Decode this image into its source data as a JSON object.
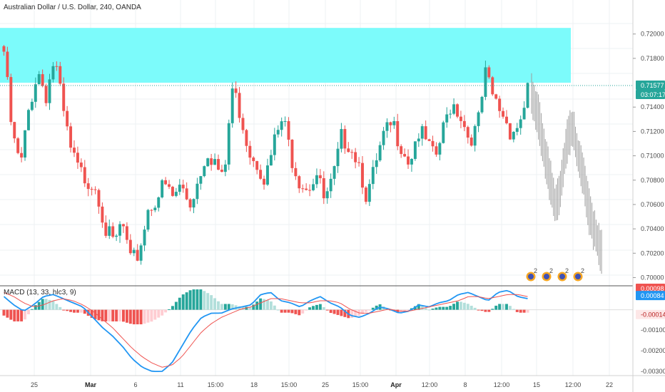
{
  "header": {
    "title": "Australian Dollar / U.S. Dollar, 240, OANDA"
  },
  "colors": {
    "up": "#26a69a",
    "down": "#ef5350",
    "zone": "#7cfbfb",
    "proj": "#9e9e9e",
    "macd_line": "#2196f3",
    "signal_line": "#ef5350",
    "price_badge": "#26a69a",
    "hist_up_strong": "#26a69a",
    "hist_up_weak": "#b2dfdb",
    "hist_down_strong": "#ef5350",
    "hist_down_weak": "#ffcdd2"
  },
  "price_scale": {
    "ticks": [
      "0.72000",
      "0.71800",
      "0.71400",
      "0.71200",
      "0.71000",
      "0.70800",
      "0.70600",
      "0.70400",
      "0.70200",
      "0.70000"
    ],
    "current_price": "0.71577",
    "countdown": "03:07:17"
  },
  "macd_scale": {
    "ticks": [
      "0.00100",
      "-0.00100",
      "-0.00200",
      "-0.00300"
    ],
    "badges": [
      "0.00098",
      "0.00084",
      "-0.00014"
    ]
  },
  "macd_title": "MACD (13, 33, hlc3, 9)",
  "x_axis": [
    {
      "label": "25",
      "bold": false
    },
    {
      "label": "Mar",
      "bold": true
    },
    {
      "label": "6",
      "bold": false
    },
    {
      "label": "11",
      "bold": false
    },
    {
      "label": "15:00",
      "bold": false
    },
    {
      "label": "18",
      "bold": false
    },
    {
      "label": "15:00",
      "bold": false
    },
    {
      "label": "25",
      "bold": false
    },
    {
      "label": "15:00",
      "bold": false
    },
    {
      "label": "Apr",
      "bold": true
    },
    {
      "label": "12:00",
      "bold": false
    },
    {
      "label": "8",
      "bold": false
    },
    {
      "label": "12:00",
      "bold": false
    },
    {
      "label": "15",
      "bold": false
    },
    {
      "label": "12:00",
      "bold": false
    },
    {
      "label": "22",
      "bold": false
    }
  ],
  "event_icons": {
    "labels": [
      "2",
      "2",
      "2",
      "2"
    ]
  },
  "chart_data": {
    "type": "candlestick",
    "title": "Australian Dollar / U.S. Dollar, 240, OANDA",
    "ylim": [
      0.6995,
      0.7225
    ],
    "zone": {
      "from": 0.716,
      "to": 0.7205
    },
    "ohlc_anchors": [
      [
        0.719,
        0.7205,
        0.715
      ],
      [
        0.712,
        0.716,
        0.7085
      ],
      [
        0.7095,
        0.713,
        0.707
      ],
      [
        0.7145,
        0.7175,
        0.713
      ],
      [
        0.7175,
        0.7185,
        0.715
      ],
      [
        0.7155,
        0.7195,
        0.7145
      ],
      [
        0.7185,
        0.721,
        0.717
      ],
      [
        0.714,
        0.7165,
        0.713
      ],
      [
        0.7105,
        0.7135,
        0.7085
      ],
      [
        0.709,
        0.712,
        0.708
      ],
      [
        0.7085,
        0.7105,
        0.7075
      ],
      [
        0.708,
        0.7095,
        0.7065
      ],
      [
        0.7045,
        0.7065,
        0.7025
      ],
      [
        0.703,
        0.705,
        0.702
      ],
      [
        0.705,
        0.706,
        0.703
      ],
      [
        0.7015,
        0.7035,
        0.7005
      ],
      [
        0.7025,
        0.7045,
        0.7015
      ],
      [
        0.706,
        0.707,
        0.704
      ],
      [
        0.707,
        0.7085,
        0.7055
      ],
      [
        0.708,
        0.7095,
        0.7065
      ],
      [
        0.707,
        0.7085,
        0.7055
      ],
      [
        0.708,
        0.7095,
        0.706
      ],
      [
        0.7065,
        0.708,
        0.7045
      ],
      [
        0.7085,
        0.71,
        0.7075
      ],
      [
        0.711,
        0.7125,
        0.7095
      ],
      [
        0.71,
        0.7115,
        0.709
      ],
      [
        0.708,
        0.71,
        0.707
      ],
      [
        0.716,
        0.7165,
        0.7085
      ],
      [
        0.714,
        0.716,
        0.7125
      ],
      [
        0.711,
        0.713,
        0.7095
      ],
      [
        0.71,
        0.7115,
        0.7085
      ],
      [
        0.7085,
        0.71,
        0.7075
      ],
      [
        0.7115,
        0.713,
        0.71
      ],
      [
        0.7135,
        0.715,
        0.7115
      ],
      [
        0.7105,
        0.7125,
        0.709
      ],
      [
        0.7085,
        0.71,
        0.7075
      ],
      [
        0.708,
        0.7095,
        0.707
      ],
      [
        0.709,
        0.7105,
        0.708
      ],
      [
        0.7065,
        0.7085,
        0.7055
      ],
      [
        0.7085,
        0.71,
        0.7075
      ],
      [
        0.712,
        0.713,
        0.7105
      ],
      [
        0.7115,
        0.7125,
        0.71
      ],
      [
        0.71,
        0.7125,
        0.709
      ],
      [
        0.707,
        0.709,
        0.706
      ],
      [
        0.7095,
        0.711,
        0.7085
      ],
      [
        0.712,
        0.713,
        0.7105
      ],
      [
        0.713,
        0.7145,
        0.712
      ],
      [
        0.7115,
        0.7125,
        0.71
      ],
      [
        0.71,
        0.7115,
        0.709
      ],
      [
        0.7125,
        0.7135,
        0.7115
      ],
      [
        0.7115,
        0.713,
        0.7105
      ],
      [
        0.71,
        0.7115,
        0.709
      ],
      [
        0.7125,
        0.714,
        0.7115
      ],
      [
        0.715,
        0.7155,
        0.7135
      ],
      [
        0.714,
        0.715,
        0.7125
      ],
      [
        0.712,
        0.7135,
        0.711
      ],
      [
        0.7125,
        0.716,
        0.7115
      ],
      [
        0.717,
        0.7175,
        0.715
      ],
      [
        0.715,
        0.7165,
        0.714
      ],
      [
        0.714,
        0.7155,
        0.712
      ],
      [
        0.7125,
        0.714,
        0.7115
      ],
      [
        0.713,
        0.7145,
        0.712
      ],
      [
        0.716,
        0.7165,
        0.713
      ]
    ],
    "projection": [
      [
        0.715,
        0.7175,
        0.714
      ],
      [
        0.7135,
        0.715,
        0.711
      ],
      [
        0.711,
        0.7125,
        0.708
      ],
      [
        0.7085,
        0.71,
        0.706
      ],
      [
        0.706,
        0.708,
        0.704
      ],
      [
        0.7075,
        0.7095,
        0.706
      ],
      [
        0.711,
        0.7125,
        0.7085
      ],
      [
        0.7125,
        0.713,
        0.7105
      ],
      [
        0.71,
        0.712,
        0.708
      ],
      [
        0.708,
        0.71,
        0.7065
      ],
      [
        0.705,
        0.7075,
        0.7035
      ],
      [
        0.7035,
        0.705,
        0.702
      ],
      [
        0.702,
        0.7035,
        0.701
      ]
    ],
    "macd": {
      "title": "MACD (13, 33, hlc3, 9)",
      "ylim": [
        -0.0031,
        0.00105
      ],
      "macd_anchors": [
        0.0006,
        0.0002,
        -0.0001,
        0.0002,
        0.0006,
        0.0007,
        0.0005,
        0.0003,
        0.0001,
        -0.0004,
        -0.0009,
        -0.0013,
        -0.0018,
        -0.0024,
        -0.0028,
        -0.003,
        -0.003,
        -0.0026,
        -0.0018,
        -0.001,
        -0.0004,
        -0.0002,
        -0.0002,
        0.0,
        0.0001,
        0.0002,
        0.0007,
        0.0008,
        0.0004,
        0.0003,
        0.0001,
        0.0004,
        0.0006,
        0.0003,
        0.0001,
        -0.0003,
        -0.0004,
        -0.0002,
        0.0001,
        0.0,
        -0.0002,
        -0.0001,
        0.0002,
        0.0001,
        0.0003,
        0.0004,
        0.0007,
        0.0008,
        0.0006,
        0.0004,
        0.0008,
        0.0009,
        0.0006,
        0.0005
      ],
      "signal_anchors": [
        0.0008,
        0.0006,
        0.0003,
        0.0001,
        0.0002,
        0.0004,
        0.0005,
        0.0004,
        0.0002,
        -0.0001,
        -0.0005,
        -0.0009,
        -0.0014,
        -0.0019,
        -0.0023,
        -0.0026,
        -0.0028,
        -0.0027,
        -0.0023,
        -0.0017,
        -0.0011,
        -0.0007,
        -0.0004,
        -0.0002,
        0.0,
        0.0001,
        0.0003,
        0.0005,
        0.0005,
        0.0004,
        0.0003,
        0.0003,
        0.0004,
        0.0004,
        0.0003,
        0.0,
        -0.0002,
        -0.0002,
        -0.0001,
        0.0,
        -0.0001,
        -0.0001,
        0.0,
        0.0001,
        0.0002,
        0.0003,
        0.0004,
        0.0006,
        0.0006,
        0.0005,
        0.0006,
        0.0007,
        0.0007,
        0.0006
      ]
    }
  }
}
